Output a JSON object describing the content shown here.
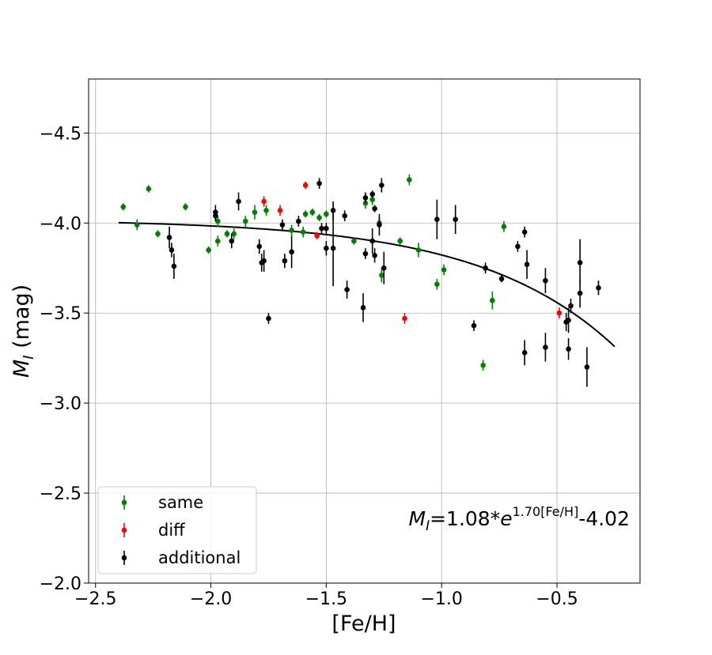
{
  "chart_data": {
    "type": "scatter",
    "xlabel": "[Fe/H]",
    "ylabel_main": "M",
    "ylabel_sub": "I",
    "ylabel_unit": " (mag)",
    "xlim": [
      -2.53,
      -0.14
    ],
    "ylim": [
      -2.0,
      -4.8
    ],
    "y_inverted": true,
    "grid": true,
    "legend_placement": "lower-left",
    "xticks": [
      -2.5,
      -2.0,
      -1.5,
      -1.0,
      -0.5
    ],
    "xtick_labels": [
      "−2.5",
      "−2.0",
      "−1.5",
      "−1.0",
      "−0.5"
    ],
    "yticks": [
      -2.0,
      -2.5,
      -3.0,
      -3.5,
      -4.0,
      -4.5
    ],
    "ytick_labels": [
      "−2.0",
      "−2.5",
      "−3.0",
      "−3.5",
      "−4.0",
      "−4.5"
    ],
    "colors": {
      "same": "#008000",
      "diff": "#ff0000",
      "additional": "#000000",
      "fit": "#000000",
      "grid": "#b0b0b0"
    },
    "formula": {
      "lhs": "M",
      "lhs_sub": "I",
      "mid": "=1.08*",
      "base": "e",
      "exponent": "1.70[Fe/H]",
      "tail": "-4.02"
    },
    "fit": {
      "a": 1.08,
      "b": 1.7,
      "c": -4.02,
      "x_range": [
        -2.4,
        -0.25
      ]
    },
    "series": [
      {
        "name": "same",
        "color": "#008000",
        "points": [
          [
            -2.38,
            -4.09,
            0.02
          ],
          [
            -2.32,
            -3.99,
            0.03
          ],
          [
            -2.27,
            -4.19,
            0.02
          ],
          [
            -2.23,
            -3.94,
            0.02
          ],
          [
            -2.11,
            -4.09,
            0.02
          ],
          [
            -2.01,
            -3.85,
            0.02
          ],
          [
            -1.97,
            -3.9,
            0.03
          ],
          [
            -1.97,
            -4.01,
            0.03
          ],
          [
            -1.93,
            -3.94,
            0.02
          ],
          [
            -1.9,
            -3.94,
            0.03
          ],
          [
            -1.85,
            -4.01,
            0.03
          ],
          [
            -1.81,
            -4.06,
            0.04
          ],
          [
            -1.76,
            -4.07,
            0.03
          ],
          [
            -1.65,
            -3.96,
            0.03
          ],
          [
            -1.6,
            -3.95,
            0.03
          ],
          [
            -1.59,
            -4.05,
            0.02
          ],
          [
            -1.56,
            -4.06,
            0.02
          ],
          [
            -1.53,
            -4.03,
            0.02
          ],
          [
            -1.5,
            -4.05,
            0.02
          ],
          [
            -1.38,
            -3.9,
            0.02
          ],
          [
            -1.33,
            -4.11,
            0.03
          ],
          [
            -1.3,
            -4.13,
            0.03
          ],
          [
            -1.27,
            -4.0,
            0.03
          ],
          [
            -1.26,
            -3.71,
            0.04
          ],
          [
            -1.18,
            -3.9,
            0.02
          ],
          [
            -1.14,
            -4.24,
            0.03
          ],
          [
            -1.1,
            -3.85,
            0.04
          ],
          [
            -1.02,
            -3.66,
            0.03
          ],
          [
            -0.99,
            -3.74,
            0.03
          ],
          [
            -0.82,
            -3.21,
            0.03
          ],
          [
            -0.78,
            -3.57,
            0.05
          ],
          [
            -0.73,
            -3.98,
            0.03
          ]
        ]
      },
      {
        "name": "diff",
        "color": "#ff0000",
        "points": [
          [
            -1.77,
            -4.12,
            0.03
          ],
          [
            -1.7,
            -4.07,
            0.03
          ],
          [
            -1.59,
            -4.21,
            0.02
          ],
          [
            -1.54,
            -3.93,
            0.02
          ],
          [
            -1.16,
            -3.47,
            0.03
          ],
          [
            -0.49,
            -3.5,
            0.03
          ]
        ]
      },
      {
        "name": "additional",
        "color": "#000000",
        "points": [
          [
            -2.18,
            -3.92,
            0.06
          ],
          [
            -2.17,
            -3.85,
            0.04
          ],
          [
            -2.16,
            -3.76,
            0.07
          ],
          [
            -1.98,
            -4.06,
            0.04
          ],
          [
            -1.98,
            -4.04,
            0.03
          ],
          [
            -1.91,
            -3.9,
            0.04
          ],
          [
            -1.88,
            -4.12,
            0.05
          ],
          [
            -1.79,
            -3.87,
            0.04
          ],
          [
            -1.78,
            -3.78,
            0.05
          ],
          [
            -1.77,
            -3.79,
            0.06
          ],
          [
            -1.75,
            -3.47,
            0.03
          ],
          [
            -1.69,
            -3.99,
            0.03
          ],
          [
            -1.68,
            -3.79,
            0.04
          ],
          [
            -1.65,
            -3.84,
            0.09
          ],
          [
            -1.62,
            -4.01,
            0.03
          ],
          [
            -1.53,
            -4.22,
            0.03
          ],
          [
            -1.52,
            -3.97,
            0.03
          ],
          [
            -1.5,
            -3.86,
            0.04
          ],
          [
            -1.5,
            -3.97,
            0.03
          ],
          [
            -1.47,
            -3.86,
            0.21
          ],
          [
            -1.47,
            -4.07,
            0.05
          ],
          [
            -1.42,
            -4.04,
            0.03
          ],
          [
            -1.41,
            -3.63,
            0.05
          ],
          [
            -1.34,
            -3.53,
            0.08
          ],
          [
            -1.33,
            -4.14,
            0.03
          ],
          [
            -1.33,
            -3.83,
            0.03
          ],
          [
            -1.3,
            -3.9,
            0.07
          ],
          [
            -1.3,
            -4.16,
            0.02
          ],
          [
            -1.29,
            -4.08,
            0.02
          ],
          [
            -1.29,
            -3.82,
            0.04
          ],
          [
            -1.27,
            -3.99,
            0.06
          ],
          [
            -1.26,
            -4.21,
            0.04
          ],
          [
            -1.25,
            -3.75,
            0.09
          ],
          [
            -1.02,
            -4.02,
            0.11
          ],
          [
            -0.94,
            -4.02,
            0.08
          ],
          [
            -0.86,
            -3.43,
            0.03
          ],
          [
            -0.81,
            -3.75,
            0.03
          ],
          [
            -0.74,
            -3.69,
            0.02
          ],
          [
            -0.67,
            -3.87,
            0.03
          ],
          [
            -0.64,
            -3.95,
            0.03
          ],
          [
            -0.64,
            -3.28,
            0.07
          ],
          [
            -0.63,
            -3.77,
            0.08
          ],
          [
            -0.55,
            -3.31,
            0.08
          ],
          [
            -0.55,
            -3.68,
            0.07
          ],
          [
            -0.46,
            -3.45,
            0.05
          ],
          [
            -0.45,
            -3.46,
            0.07
          ],
          [
            -0.45,
            -3.3,
            0.06
          ],
          [
            -0.44,
            -3.54,
            0.04
          ],
          [
            -0.4,
            -3.61,
            0.08
          ],
          [
            -0.4,
            -3.78,
            0.13
          ],
          [
            -0.37,
            -3.2,
            0.11
          ],
          [
            -0.32,
            -3.64,
            0.04
          ]
        ]
      }
    ]
  }
}
